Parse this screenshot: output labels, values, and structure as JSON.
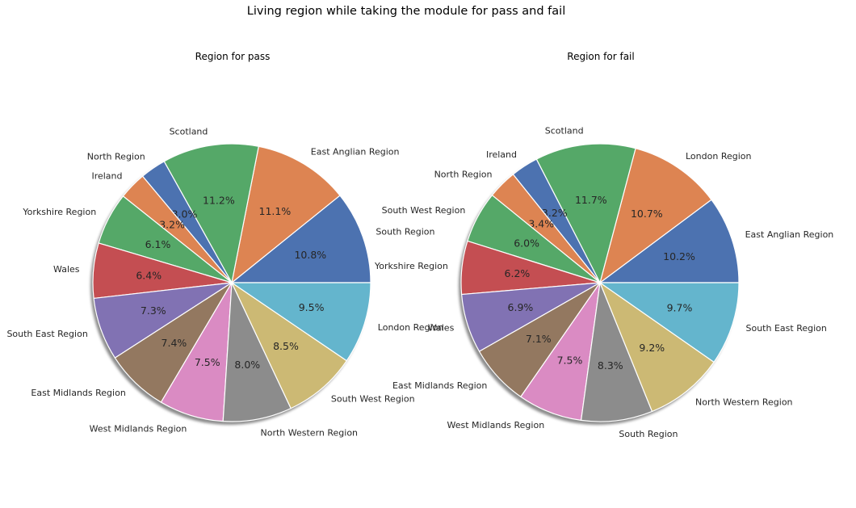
{
  "chart_data": [
    {
      "type": "pie",
      "title": "Region for pass",
      "labels": [
        "South Region",
        "East Anglian Region",
        "Scotland",
        "North Region",
        "Ireland",
        "Yorkshire Region",
        "Wales",
        "South East Region",
        "East Midlands Region",
        "West Midlands Region",
        "North Western Region",
        "South West Region",
        "London Region"
      ],
      "values": [
        10.8,
        11.1,
        11.2,
        3.0,
        3.2,
        6.1,
        6.4,
        7.3,
        7.4,
        7.5,
        8.0,
        8.5,
        9.5
      ],
      "value_labels": [
        "10.8%",
        "11.1%",
        "11.2%",
        "3.0%",
        "3.2%",
        "6.1%",
        "6.4%",
        "7.3%",
        "7.4%",
        "7.5%",
        "8.0%",
        "8.5%",
        "9.5%"
      ],
      "start_angle_deg": 0,
      "direction": "counterclockwise",
      "shadow": true
    },
    {
      "type": "pie",
      "title": "Region for fail",
      "labels": [
        "East Anglian Region",
        "London Region",
        "Scotland",
        "Ireland",
        "North Region",
        "South West Region",
        "Yorkshire Region",
        "Wales",
        "East Midlands Region",
        "West Midlands Region",
        "South Region",
        "North Western Region",
        "South East Region"
      ],
      "values": [
        10.2,
        10.7,
        11.7,
        3.2,
        3.4,
        6.0,
        6.2,
        6.9,
        7.1,
        7.5,
        8.3,
        9.2,
        9.7
      ],
      "value_labels": [
        "10.2%",
        "10.7%",
        "11.7%",
        "3.2%",
        "3.4%",
        "6.0%",
        "6.2%",
        "6.9%",
        "7.1%",
        "7.5%",
        "8.3%",
        "9.2%",
        "9.7%"
      ],
      "start_angle_deg": 0,
      "direction": "counterclockwise",
      "shadow": true
    }
  ],
  "figure": {
    "suptitle": "Living region while taking the module for pass and fail"
  },
  "colors": [
    "#4c72b0",
    "#dd8452",
    "#55a868",
    "#4c72b0",
    "#dd8452",
    "#55a868",
    "#c44e52",
    "#8172b3",
    "#937860",
    "#da8bc3",
    "#8c8c8c",
    "#ccb974",
    "#64b5cd"
  ]
}
